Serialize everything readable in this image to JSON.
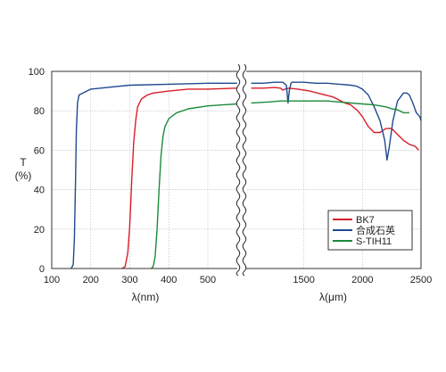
{
  "chart_data": {
    "type": "line",
    "title": "",
    "ylabel": "T\n(%)",
    "ylim": [
      0,
      100
    ],
    "yticks": [
      "0",
      "20",
      "40",
      "60",
      "80",
      "100"
    ],
    "grid": true,
    "axis_break": "wavy vertical break between 500 nm and 1000 nm",
    "xlabel_left": "λ(nm)",
    "xlabel_right": "λ(μm)",
    "xticks_left": [
      "100",
      "200",
      "300",
      "400",
      "500"
    ],
    "xticks_right": [
      "1500",
      "2000",
      "2500"
    ],
    "left_segment": {
      "x_unit": "nm",
      "xlim": [
        100,
        580
      ]
    },
    "right_segment": {
      "x_unit": "nm",
      "xlim": [
        1000,
        2500
      ]
    },
    "legend": {
      "position": "lower-right"
    },
    "series": [
      {
        "name": "BK7",
        "color": "#d81e2a",
        "left_points": [
          [
            280,
            0
          ],
          [
            288,
            1
          ],
          [
            295,
            8
          ],
          [
            300,
            22
          ],
          [
            305,
            45
          ],
          [
            310,
            64
          ],
          [
            315,
            75
          ],
          [
            320,
            82
          ],
          [
            330,
            86
          ],
          [
            345,
            88
          ],
          [
            360,
            89
          ],
          [
            400,
            90
          ],
          [
            450,
            91
          ],
          [
            500,
            91
          ],
          [
            575,
            91.5
          ]
        ],
        "right_points": [
          [
            1050,
            91.5
          ],
          [
            1150,
            91.5
          ],
          [
            1250,
            91.8
          ],
          [
            1300,
            91.5
          ],
          [
            1320,
            90.5
          ],
          [
            1340,
            91
          ],
          [
            1370,
            91.5
          ],
          [
            1450,
            91
          ],
          [
            1550,
            90
          ],
          [
            1650,
            88.5
          ],
          [
            1750,
            87
          ],
          [
            1850,
            84
          ],
          [
            1900,
            83
          ],
          [
            1960,
            80
          ],
          [
            2000,
            77
          ],
          [
            2050,
            72
          ],
          [
            2100,
            69
          ],
          [
            2150,
            69
          ],
          [
            2200,
            71
          ],
          [
            2250,
            71
          ],
          [
            2300,
            68
          ],
          [
            2350,
            65
          ],
          [
            2400,
            63
          ],
          [
            2450,
            62
          ],
          [
            2480,
            60
          ]
        ]
      },
      {
        "name": "合成石英",
        "color": "#1f4a8f",
        "left_points": [
          [
            150,
            0
          ],
          [
            155,
            2
          ],
          [
            158,
            15
          ],
          [
            161,
            45
          ],
          [
            163,
            70
          ],
          [
            166,
            84
          ],
          [
            170,
            88
          ],
          [
            180,
            89
          ],
          [
            200,
            91
          ],
          [
            250,
            92
          ],
          [
            300,
            93
          ],
          [
            400,
            93.5
          ],
          [
            500,
            94
          ],
          [
            575,
            94
          ]
        ],
        "right_points": [
          [
            1050,
            94
          ],
          [
            1150,
            94
          ],
          [
            1250,
            94.5
          ],
          [
            1320,
            94.5
          ],
          [
            1350,
            93
          ],
          [
            1365,
            84
          ],
          [
            1375,
            90
          ],
          [
            1390,
            94
          ],
          [
            1400,
            94.5
          ],
          [
            1450,
            94.5
          ],
          [
            1500,
            94.5
          ],
          [
            1600,
            94
          ],
          [
            1700,
            94
          ],
          [
            1800,
            93.5
          ],
          [
            1900,
            93
          ],
          [
            1950,
            92.5
          ],
          [
            2000,
            91
          ],
          [
            2050,
            88
          ],
          [
            2100,
            82
          ],
          [
            2150,
            75
          ],
          [
            2190,
            65
          ],
          [
            2210,
            55
          ],
          [
            2230,
            62
          ],
          [
            2260,
            75
          ],
          [
            2300,
            85
          ],
          [
            2350,
            89
          ],
          [
            2380,
            89
          ],
          [
            2400,
            88
          ],
          [
            2430,
            84
          ],
          [
            2460,
            79
          ],
          [
            2490,
            77
          ],
          [
            2500,
            75
          ]
        ]
      },
      {
        "name": "S-TIH11",
        "color": "#1a8a3a",
        "left_points": [
          [
            355,
            0
          ],
          [
            360,
            1
          ],
          [
            365,
            6
          ],
          [
            370,
            20
          ],
          [
            375,
            40
          ],
          [
            380,
            57
          ],
          [
            385,
            67
          ],
          [
            390,
            72
          ],
          [
            400,
            76
          ],
          [
            420,
            79
          ],
          [
            450,
            81
          ],
          [
            500,
            82.5
          ],
          [
            575,
            83.5
          ]
        ],
        "right_points": [
          [
            1050,
            84
          ],
          [
            1200,
            84.5
          ],
          [
            1300,
            85
          ],
          [
            1400,
            85
          ],
          [
            1500,
            85
          ],
          [
            1600,
            85
          ],
          [
            1700,
            85
          ],
          [
            1800,
            84.5
          ],
          [
            1900,
            84
          ],
          [
            2000,
            83.5
          ],
          [
            2100,
            83
          ],
          [
            2150,
            82.5
          ],
          [
            2200,
            82
          ],
          [
            2250,
            81
          ],
          [
            2300,
            80.5
          ],
          [
            2350,
            79
          ],
          [
            2400,
            79
          ]
        ]
      }
    ]
  }
}
